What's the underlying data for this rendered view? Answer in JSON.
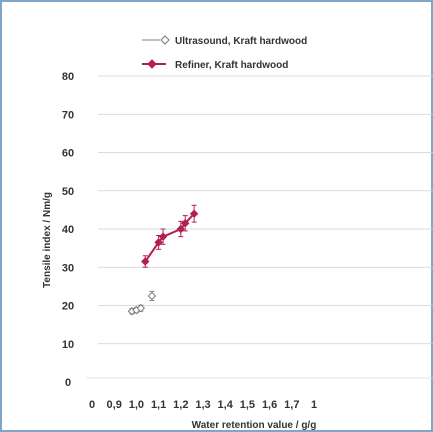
{
  "chart_data": {
    "type": "scatter",
    "xlabel": "Water retention value / g/g",
    "ylabel": "Tensile index / Nm/g",
    "xlim": [
      0,
      1.8
    ],
    "ylim": [
      0,
      80
    ],
    "x_ticks": [
      "0",
      "0,9",
      "1,0",
      "1,1",
      "1,2",
      "1,3",
      "1,4",
      "1,5",
      "1,6",
      "1,7",
      "1"
    ],
    "y_ticks": [
      "0",
      "10",
      "20",
      "30",
      "40",
      "50",
      "60",
      "70",
      "80"
    ],
    "grid": "horizontal",
    "legend_position": "top",
    "series": [
      {
        "name": "Ultrasound, Kraft hardwood",
        "color": "#9a9a9a",
        "marker": "open-diamond",
        "line": false,
        "points": [
          {
            "x": 0.98,
            "y": 18.5,
            "err": 0.7
          },
          {
            "x": 1.0,
            "y": 18.8,
            "err": 0.7
          },
          {
            "x": 1.02,
            "y": 19.3,
            "err": 0.8
          },
          {
            "x": 1.07,
            "y": 22.5,
            "err": 1.2
          }
        ]
      },
      {
        "name": "Refiner, Kraft hardwood",
        "color": "#b31f4f",
        "marker": "filled-diamond",
        "line": true,
        "points": [
          {
            "x": 1.04,
            "y": 31.5,
            "err": 1.5
          },
          {
            "x": 1.1,
            "y": 36.5,
            "err": 1.8
          },
          {
            "x": 1.12,
            "y": 38.0,
            "err": 2.0
          },
          {
            "x": 1.2,
            "y": 40.0,
            "err": 2.0
          },
          {
            "x": 1.22,
            "y": 41.5,
            "err": 2.0
          },
          {
            "x": 1.26,
            "y": 44.0,
            "err": 2.2
          }
        ]
      }
    ]
  }
}
